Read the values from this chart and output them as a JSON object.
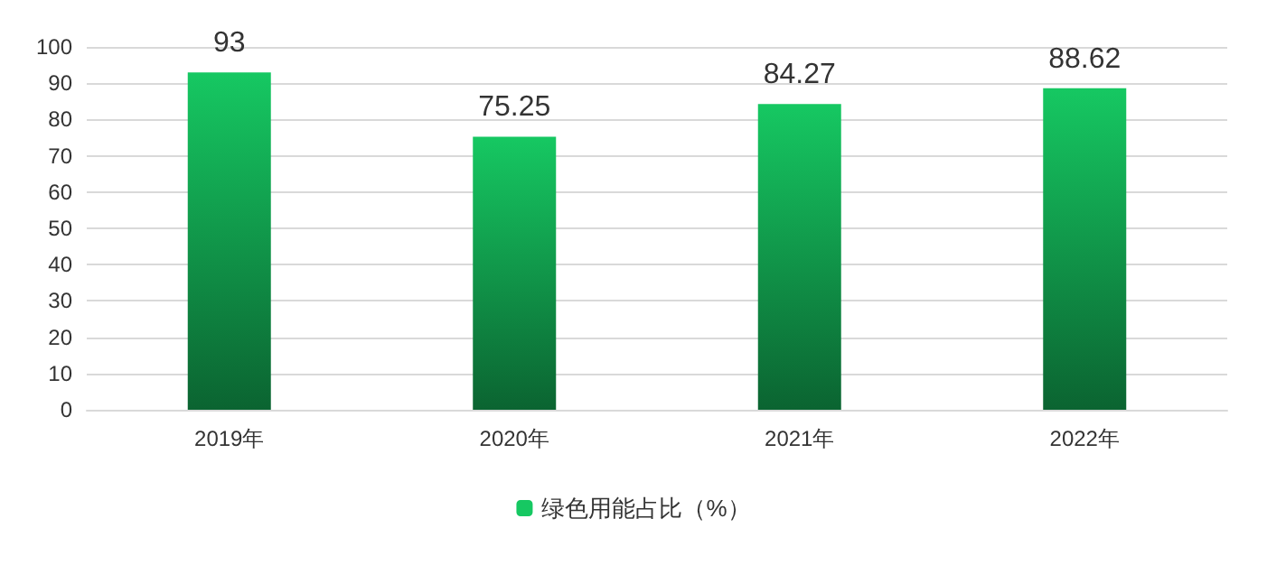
{
  "chart_data": {
    "type": "bar",
    "categories": [
      "2019年",
      "2020年",
      "2021年",
      "2022年"
    ],
    "series": [
      {
        "name": "绿色用能占比（%）",
        "color": "#16c862",
        "values": [
          93,
          75.25,
          84.27,
          88.62
        ]
      }
    ],
    "ylim": [
      0,
      100
    ],
    "yticks": [
      0,
      10,
      20,
      30,
      40,
      50,
      60,
      70,
      80,
      90,
      100
    ],
    "grid": "y",
    "legend": "bottom",
    "data_labels": true
  }
}
